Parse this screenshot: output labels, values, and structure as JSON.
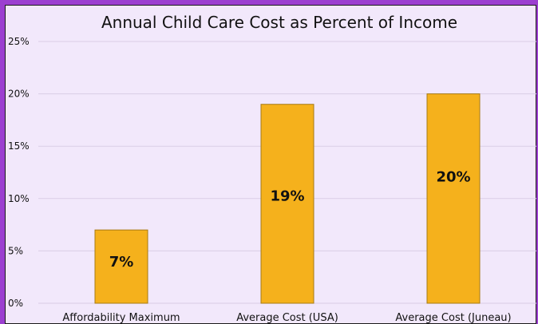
{
  "chart_data": {
    "type": "bar",
    "title": "Annual Child Care Cost as Percent of Income",
    "xlabel": "",
    "ylabel": "",
    "categories": [
      "Affordability Maximum",
      "Average Cost (USA)",
      "Average Cost (Juneau)"
    ],
    "values": [
      7,
      19,
      20
    ],
    "value_labels": [
      "7%",
      "19%",
      "20%"
    ],
    "ylim": [
      0,
      25
    ],
    "yticks": [
      0,
      5,
      10,
      15,
      20,
      25
    ],
    "ytick_labels": [
      "0%",
      "5%",
      "10%",
      "15%",
      "20%",
      "25%"
    ],
    "grid": true,
    "legend": "none",
    "colors": {
      "bar": "#f5b11c",
      "bar_border": "#a77a14",
      "grid": "#d9cde6",
      "frame": "#9c3fd0",
      "background": "#f2e8fb"
    }
  }
}
